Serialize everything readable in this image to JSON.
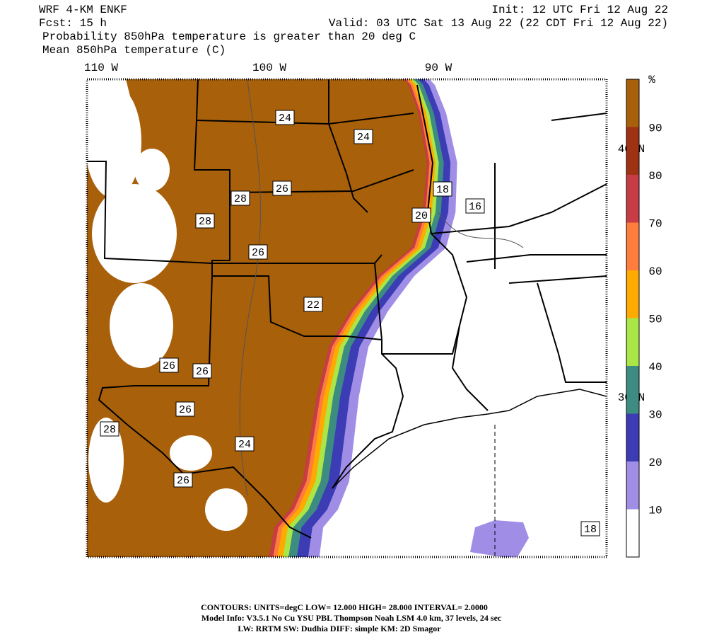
{
  "header": {
    "model": "WRF 4-KM ENKF",
    "forecast": "Fcst:   15 h",
    "init": "Init: 12 UTC Fri 12 Aug 22",
    "valid": "Valid: 03 UTC Sat 13 Aug 22 (22 CDT Fri 12 Aug 22)",
    "title": "Probability 850hPa temperature is greater than 20 deg C",
    "subtitle": "Mean 850hPa temperature (C)"
  },
  "longitude_labels": [
    "110 W",
    "100 W",
    "90 W"
  ],
  "latitude_labels": [
    "40 N",
    "30 N"
  ],
  "colorbar": {
    "unit": "%",
    "levels": [
      10,
      20,
      30,
      40,
      50,
      60,
      70,
      80,
      90
    ],
    "colors": [
      "#ffffff",
      "#a08ee6",
      "#3c3cb4",
      "#3c8c82",
      "#aae646",
      "#ffaa00",
      "#ff7d3c",
      "#c83c46",
      "#a03214",
      "#a8600a"
    ]
  },
  "contour_labels": [
    "24",
    "24",
    "26",
    "28",
    "28",
    "26",
    "22",
    "26",
    "26",
    "26",
    "28",
    "24",
    "26",
    "18",
    "16",
    "20",
    "18"
  ],
  "footer": [
    "CONTOURS:  UNITS=degC  LOW=   12.000        HIGH=  28.000       INTERVAL=    2.0000",
    "Model Info: V3.5.1     No Cu    YSU PBL  Thompson      Noah LSM  4.0 km,   37 levels,     24 sec",
    "LW: RRTM SW: Dudhia   DIFF: simple KM: 2D Smagor"
  ]
}
